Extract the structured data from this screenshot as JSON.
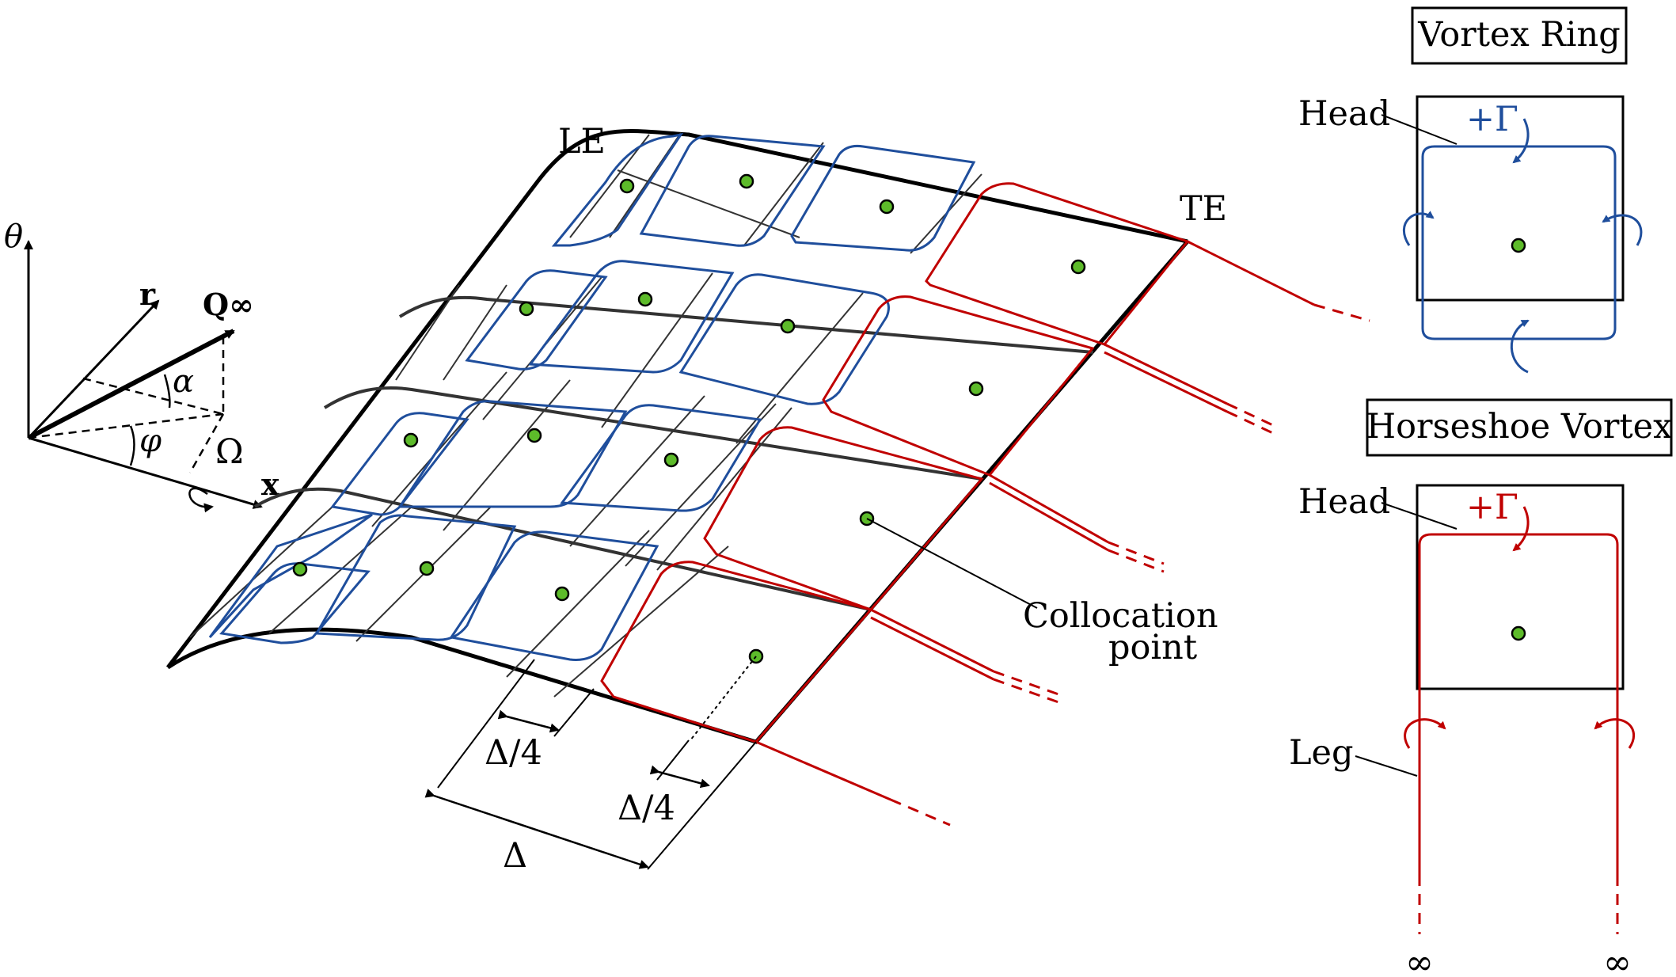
{
  "axes": {
    "theta": "θ",
    "r": "r",
    "x": "x",
    "q_inf": "Q∞",
    "alpha": "α",
    "phi": "φ",
    "omega": "Ω"
  },
  "wing": {
    "le": "LE",
    "te": "TE",
    "collocation_line1": "Collocation",
    "collocation_line2": "point",
    "delta_quarter_1": "Δ/4",
    "delta_quarter_2": "Δ/4",
    "delta": "Δ"
  },
  "vortex_ring": {
    "title": "Vortex Ring",
    "head": "Head",
    "gamma": "+Γ"
  },
  "horseshoe": {
    "title": "Horseshoe Vortex",
    "head": "Head",
    "gamma": "+Γ",
    "leg": "Leg",
    "inf_left": "∞",
    "inf_right": "∞"
  },
  "colors": {
    "bound_vortex": "#1f4e9c",
    "wake_vortex": "#c00000",
    "collocation": "#5dbb2a"
  }
}
